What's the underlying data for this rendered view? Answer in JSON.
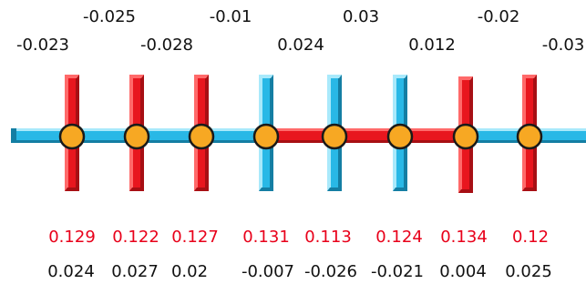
{
  "colors": {
    "red": "#e8161e",
    "red_dark": "#a70f14",
    "red_light": "#ff6a6a",
    "blue": "#29b8e6",
    "blue_dark": "#147ea3",
    "blue_light": "#a9e9fb",
    "node": "#f7a823",
    "node_border": "#1a1a1a",
    "label_red": "#e8001a"
  },
  "top_labels": [
    "-0.023",
    "-0.025",
    "-0.028",
    "-0.01",
    "0.024",
    "0.03",
    "0.012",
    "-0.02",
    "-0.03"
  ],
  "crossbars": [
    {
      "color": "red"
    },
    {
      "color": "red"
    },
    {
      "color": "red"
    },
    {
      "color": "blue"
    },
    {
      "color": "blue"
    },
    {
      "color": "blue"
    },
    {
      "color": "red"
    },
    {
      "color": "red"
    }
  ],
  "spine_segments": [
    "blue",
    "blue",
    "blue",
    "blue",
    "red",
    "red",
    "red",
    "blue",
    "blue"
  ],
  "red_values": [
    "0.129",
    "0.122",
    "0.127",
    "0.131",
    "0.113",
    "0.124",
    "0.134",
    "0.12"
  ],
  "black_values": [
    "0.024",
    "0.027",
    "0.02",
    "-0.007",
    "-0.026",
    "-0.021",
    "0.004",
    "0.025"
  ]
}
